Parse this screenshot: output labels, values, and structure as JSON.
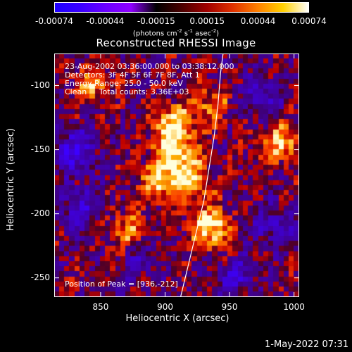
{
  "title": "Reconstructed RHESSI Image",
  "colorbar": {
    "unit_html_parts": [
      "(photons cm",
      "-2",
      " s",
      "-1",
      " asec",
      "-2",
      ")"
    ],
    "tick_labels": [
      "-0.00074",
      "-0.00044",
      "-0.00015",
      "0.00015",
      "0.00044",
      "0.00074"
    ],
    "colors": [
      "#1e00ff",
      "#3a00ff",
      "#6a00ff",
      "#8f00ff",
      "#000000",
      "#4a0000",
      "#a00000",
      "#e03000",
      "#ff8000",
      "#ffd000",
      "#ffffff"
    ]
  },
  "annotations": {
    "time_range": "23-Aug-2002 03:36:00.000 to 03:38:12.000",
    "detectors": "Detectors: 3F 4F 5F 6F 7F 8F, Att 1",
    "energy": "Energy Range: 25.0 - 50.0 keV",
    "clean": "Clean     Total counts: 3.36E+03",
    "peak": "Position of Peak = [936,-212]"
  },
  "footer": {
    "timestamp": "1-May-2022 07:31"
  },
  "chart_data": {
    "type": "heatmap",
    "title": "Reconstructed RHESSI Image",
    "xlabel": "Heliocentric X (arcsec)",
    "ylabel": "Heliocentric Y (arcsec)",
    "xlim": [
      814,
      1004
    ],
    "ylim": [
      -265,
      -75
    ],
    "x_ticks": [
      850,
      900,
      950,
      1000
    ],
    "y_ticks": [
      -100,
      -150,
      -200,
      -250
    ],
    "colorbar_range": [
      -0.00074,
      0.00074
    ],
    "peak_position": [
      936,
      -212
    ],
    "limb_curve": {
      "x": [
        912,
        918,
        924,
        930,
        934,
        938,
        941,
        943,
        945
      ],
      "y": [
        -265,
        -240,
        -215,
        -190,
        -165,
        -140,
        -115,
        -90,
        -75
      ]
    },
    "bright_regions": [
      {
        "x": 936,
        "y": -212,
        "intensity": 1.0
      },
      {
        "x": 908,
        "y": -152,
        "intensity": 0.9
      },
      {
        "x": 905,
        "y": -130,
        "intensity": 0.8
      },
      {
        "x": 920,
        "y": -175,
        "intensity": 0.85
      },
      {
        "x": 895,
        "y": -175,
        "intensity": 0.75
      },
      {
        "x": 990,
        "y": -145,
        "intensity": 0.8
      },
      {
        "x": 845,
        "y": -98,
        "intensity": 0.65
      },
      {
        "x": 870,
        "y": -215,
        "intensity": 0.6
      },
      {
        "x": 935,
        "y": -115,
        "intensity": 0.55
      }
    ],
    "dark_regions": [
      {
        "x": 830,
        "y": -150,
        "intensity": -0.8
      },
      {
        "x": 835,
        "y": -195,
        "intensity": -0.6
      },
      {
        "x": 975,
        "y": -110,
        "intensity": -0.5
      },
      {
        "x": 955,
        "y": -250,
        "intensity": -0.55
      },
      {
        "x": 880,
        "y": -235,
        "intensity": -0.45
      },
      {
        "x": 985,
        "y": -210,
        "intensity": -0.5
      }
    ]
  }
}
